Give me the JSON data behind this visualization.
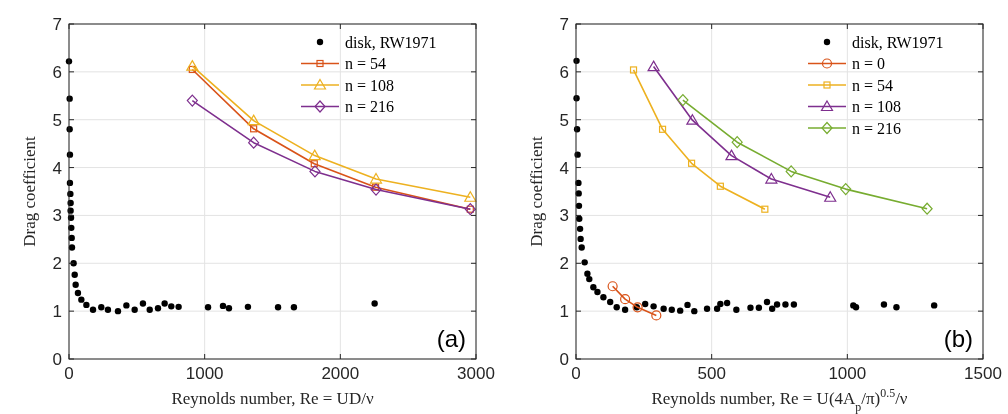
{
  "chart_data": [
    {
      "type": "line",
      "xlabel": "Reynolds number, Re = UD/ν",
      "ylabel": "Drag coefficient",
      "xlim": [
        0,
        3000
      ],
      "xticks": [
        0,
        1000,
        2000,
        3000
      ],
      "ylim": [
        0,
        7
      ],
      "yticks": [
        0,
        1,
        2,
        3,
        4,
        5,
        6,
        7
      ],
      "grid": true,
      "legend": "top right",
      "annotations": [
        "(a)"
      ],
      "series": [
        {
          "name": "disk, RW1971",
          "type": "scatter",
          "marker": "circle",
          "color": "#000000",
          "x": [
            0,
            5,
            5,
            7,
            7,
            10,
            12,
            12,
            15,
            17,
            20,
            22,
            34,
            42,
            49,
            66,
            91,
            128,
            177,
            238,
            287,
            361,
            423,
            484,
            545,
            595,
            656,
            705,
            754,
            808,
            1025,
            1135,
            1179,
            1319,
            1541,
            1658,
            2253
          ],
          "values": [
            6.22,
            5.44,
            4.8,
            4.27,
            3.68,
            3.45,
            3.26,
            3.1,
            2.95,
            2.74,
            2.53,
            2.33,
            2.0,
            1.76,
            1.55,
            1.38,
            1.24,
            1.13,
            1.03,
            1.08,
            1.03,
            1.0,
            1.12,
            1.03,
            1.16,
            1.03,
            1.06,
            1.16,
            1.1,
            1.09,
            1.08,
            1.11,
            1.06,
            1.09,
            1.08,
            1.08,
            1.16
          ]
        },
        {
          "name": "n = 54",
          "marker": "square",
          "color": "#d95319",
          "x": [
            909,
            1361,
            1808,
            2260,
            2958
          ],
          "values": [
            6.05,
            4.81,
            4.08,
            3.59,
            3.13
          ]
        },
        {
          "name": "n = 108",
          "marker": "triangle",
          "color": "#edb120",
          "x": [
            909,
            1361,
            1811,
            2263,
            2958
          ],
          "values": [
            6.12,
            4.98,
            4.25,
            3.76,
            3.38
          ]
        },
        {
          "name": "n = 216",
          "marker": "diamond",
          "color": "#7e2f8e",
          "x": [
            909,
            1361,
            1813,
            2263,
            2958
          ],
          "values": [
            5.4,
            4.52,
            3.92,
            3.54,
            3.13
          ]
        }
      ]
    },
    {
      "type": "line",
      "xlabel": "Reynolds number, Re = U(4A$_{p}$/π)$^{0.5}$/ν",
      "ylabel": "Drag coefficient",
      "xlim": [
        0,
        1500
      ],
      "xticks": [
        0,
        500,
        1000,
        1500
      ],
      "ylim": [
        0,
        7
      ],
      "yticks": [
        0,
        1,
        2,
        3,
        4,
        5,
        6,
        7
      ],
      "grid": true,
      "legend": "top right",
      "annotations": [
        "(b)"
      ],
      "series": [
        {
          "name": "disk, RW1971",
          "type": "scatter",
          "marker": "circle",
          "color": "#000000",
          "x": [
            2,
            2,
            4,
            6,
            9,
            10,
            11,
            12,
            15,
            17,
            21,
            32,
            42,
            49,
            64,
            79,
            101,
            126,
            150,
            181,
            224,
            255,
            286,
            323,
            353,
            384,
            411,
            436,
            483,
            520,
            532,
            557,
            591,
            643,
            674,
            704,
            723,
            741,
            772,
            803,
            1022,
            1032,
            1135,
            1181,
            1320
          ],
          "values": [
            6.23,
            5.45,
            4.8,
            4.27,
            3.68,
            3.46,
            3.2,
            2.93,
            2.72,
            2.51,
            2.33,
            2.02,
            1.78,
            1.67,
            1.5,
            1.4,
            1.29,
            1.19,
            1.08,
            1.03,
            1.08,
            1.15,
            1.1,
            1.05,
            1.03,
            1.01,
            1.13,
            1.0,
            1.05,
            1.05,
            1.15,
            1.17,
            1.03,
            1.07,
            1.07,
            1.19,
            1.05,
            1.14,
            1.14,
            1.14,
            1.12,
            1.08,
            1.14,
            1.08,
            1.12
          ]
        },
        {
          "name": "n = 0",
          "marker": "circle",
          "color": "#d95319",
          "x": [
            135,
            181,
            227,
            296
          ],
          "values": [
            1.52,
            1.25,
            1.08,
            0.91
          ]
        },
        {
          "name": "n = 54",
          "marker": "square",
          "color": "#edb120",
          "x": [
            212,
            319,
            426,
            532,
            696
          ],
          "values": [
            6.04,
            4.8,
            4.09,
            3.61,
            3.13
          ]
        },
        {
          "name": "n = 108",
          "marker": "triangle",
          "color": "#7e2f8e",
          "x": [
            286,
            429,
            573,
            720,
            937
          ],
          "values": [
            6.11,
            4.99,
            4.25,
            3.76,
            3.38
          ]
        },
        {
          "name": "n = 216",
          "marker": "diamond",
          "color": "#77ac30",
          "x": [
            394,
            594,
            793,
            994,
            1294
          ],
          "values": [
            5.41,
            4.53,
            3.92,
            3.55,
            3.14
          ]
        }
      ]
    }
  ]
}
